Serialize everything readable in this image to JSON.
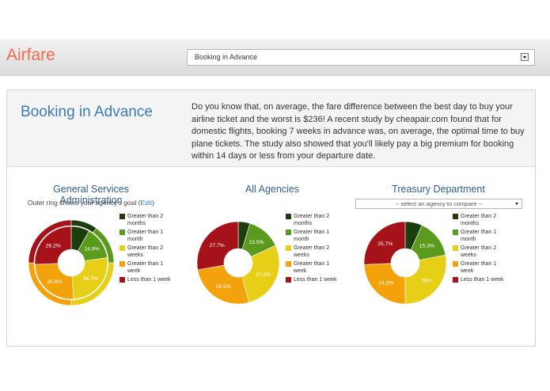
{
  "header": {
    "brand": "Airfare",
    "topic_select_value": "Booking in Advance"
  },
  "intro": {
    "title": "Booking in Advance",
    "text": "Do you know that, on average, the fare difference between the best day to buy your airline ticket and the worst is $236! A recent study by cheapair.com found that for domestic flights, booking 7 weeks in advance was, on average, the optimal time to buy plane tickets. The study also showed that you'll likely pay a big premium for booking within 14 days or less from your departure date."
  },
  "legend": [
    {
      "label": "Greater than 2 months",
      "color": "#1c3d0c"
    },
    {
      "label": "Greater than 1 month",
      "color": "#5a9a1c"
    },
    {
      "label": "Greater than 2 weeks",
      "color": "#e6cf16"
    },
    {
      "label": "Greater than 1 week",
      "color": "#f4a20c"
    },
    {
      "label": "Less than 1 week",
      "color": "#a6121a"
    }
  ],
  "charts": {
    "gsa": {
      "title": "General Services Administration",
      "note_prefix": "Outer ring shows your agency's goal (",
      "note_edit": "Edit",
      "note_suffix": ")"
    },
    "all": {
      "title": "All Agencies"
    },
    "treasury": {
      "title": "Treasury Department",
      "compare_placeholder": "-- select an agency to compare --"
    }
  },
  "chart_data": [
    {
      "type": "pie",
      "title": "General Services Administration",
      "categories": [
        "Greater than 2 months",
        "Greater than 1 month",
        "Greater than 2 weeks",
        "Greater than 1 week",
        "Less than 1 week"
      ],
      "values": [
        8.3,
        14.9,
        26.7,
        25.8,
        26.2
      ],
      "labels": [
        "",
        "14.9%",
        "26.7%",
        "25.8%",
        "26.2%"
      ],
      "outer_ring_goal": [
        10,
        15,
        25,
        25,
        25
      ]
    },
    {
      "type": "pie",
      "title": "All Agencies",
      "categories": [
        "Greater than 2 months",
        "Greater than 1 month",
        "Greater than 2 weeks",
        "Greater than 1 week",
        "Less than 1 week"
      ],
      "values": [
        4.6,
        13.5,
        27.6,
        26.5,
        27.7
      ],
      "labels": [
        "",
        "13.5%",
        "27.6%",
        "26.5%",
        "27.7%"
      ]
    },
    {
      "type": "pie",
      "title": "Treasury Department",
      "categories": [
        "Greater than 2 months",
        "Greater than 1 month",
        "Greater than 2 weeks",
        "Greater than 1 week",
        "Less than 1 week"
      ],
      "values": [
        6.7,
        15.3,
        28.0,
        24.3,
        25.7
      ],
      "labels": [
        "",
        "15.3%",
        "28%",
        "24.3%",
        "25.7%"
      ]
    }
  ]
}
